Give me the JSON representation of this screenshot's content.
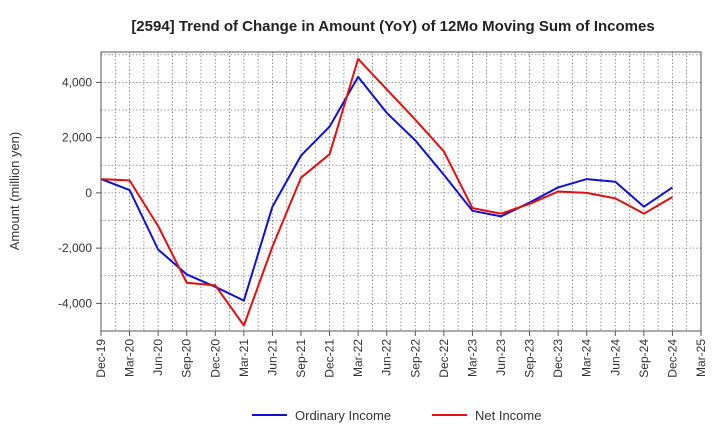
{
  "chart_data": {
    "type": "line",
    "title": "[2594]  Trend of Change in Amount (YoY) of 12Mo Moving Sum of Incomes",
    "xlabel": "",
    "ylabel": "Amount (million yen)",
    "ylim": [
      -5000,
      5100
    ],
    "yticks": [
      4000,
      2000,
      0,
      -2000,
      -4000
    ],
    "ytick_labels": [
      "4,000",
      "2,000",
      "0",
      "-2,000",
      "-4,000"
    ],
    "categories": [
      "Dec-19",
      "Mar-20",
      "Jun-20",
      "Sep-20",
      "Dec-20",
      "Mar-21",
      "Jun-21",
      "Sep-21",
      "Dec-21",
      "Mar-22",
      "Jun-22",
      "Sep-22",
      "Dec-22",
      "Mar-23",
      "Jun-23",
      "Sep-23",
      "Dec-23",
      "Mar-24",
      "Jun-24",
      "Sep-24",
      "Dec-24",
      "Mar-25"
    ],
    "grid": true,
    "legend_position": "bottom-center",
    "series": [
      {
        "name": "Ordinary Income",
        "color": "#1010d0",
        "values": [
          500,
          100,
          -2050,
          -2950,
          -3400,
          -3900,
          -500,
          1350,
          2400,
          4200,
          2900,
          1900,
          650,
          -650,
          -850,
          -350,
          200,
          500,
          400,
          -500,
          200,
          null
        ]
      },
      {
        "name": "Net Income",
        "color": "#e01010",
        "values": [
          500,
          450,
          -1200,
          -3250,
          -3350,
          -4800,
          -1950,
          550,
          1400,
          4850,
          3750,
          2650,
          1500,
          -550,
          -750,
          -400,
          50,
          0,
          -200,
          -750,
          -150,
          null
        ]
      }
    ]
  }
}
